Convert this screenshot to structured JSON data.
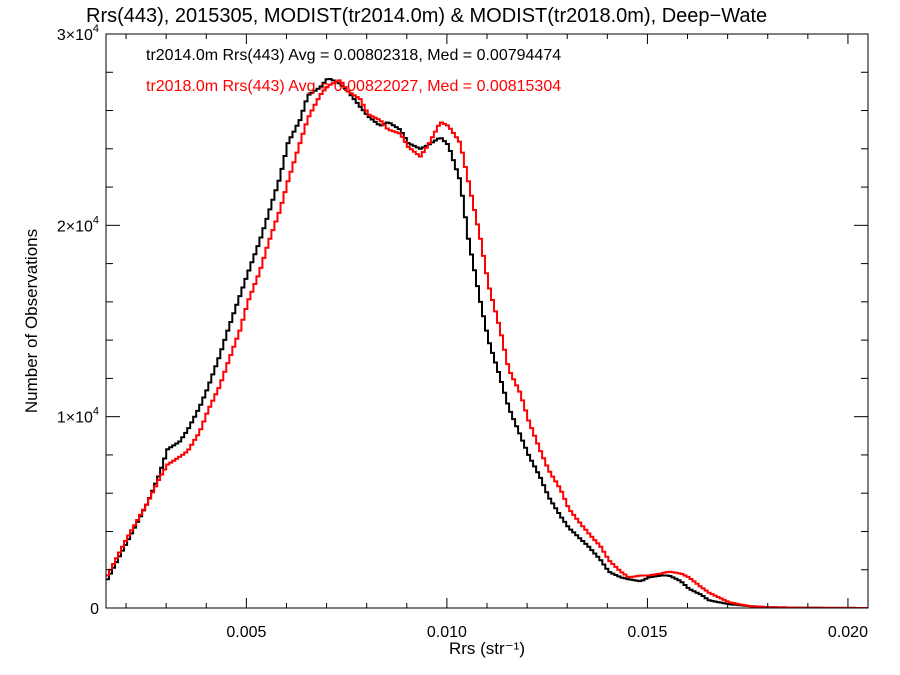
{
  "chart_data": {
    "type": "line",
    "title": "Rrs(443), 2015305, MODIST(tr2014.0m) & MODIST(tr2018.0m), Deep−Wate",
    "xlabel": "Rrs (str⁻¹)",
    "ylabel": "Number of Observations",
    "xlim": [
      0.0015,
      0.0205
    ],
    "ylim": [
      0,
      30000
    ],
    "x_ticks": [
      {
        "value": 0.005,
        "label": "0.005"
      },
      {
        "value": 0.01,
        "label": "0.010"
      },
      {
        "value": 0.015,
        "label": "0.015"
      },
      {
        "value": 0.02,
        "label": "0.020"
      }
    ],
    "y_ticks": [
      {
        "value": 0,
        "base": "0",
        "exp": ""
      },
      {
        "value": 10000,
        "base": "1×10",
        "exp": "4"
      },
      {
        "value": 20000,
        "base": "2×10",
        "exp": "4"
      },
      {
        "value": 30000,
        "base": "3×10",
        "exp": "4"
      }
    ],
    "legend_placement": "top-left",
    "series": [
      {
        "name": "tr2014.0m",
        "color": "#000000",
        "annotation": "tr2014.0m Rrs(443) Avg = 0.00802318, Med = 0.00794474",
        "x": [
          0.0015,
          0.002,
          0.0025,
          0.0028,
          0.003,
          0.0033,
          0.0035,
          0.0038,
          0.004,
          0.0043,
          0.0045,
          0.0048,
          0.005,
          0.0053,
          0.0055,
          0.0058,
          0.006,
          0.0063,
          0.0065,
          0.0068,
          0.007,
          0.0073,
          0.0075,
          0.0078,
          0.008,
          0.0083,
          0.0085,
          0.0088,
          0.009,
          0.0093,
          0.0095,
          0.0098,
          0.01,
          0.0103,
          0.0105,
          0.0108,
          0.011,
          0.0113,
          0.0115,
          0.0118,
          0.012,
          0.0123,
          0.0125,
          0.0128,
          0.013,
          0.0133,
          0.0135,
          0.0138,
          0.014,
          0.0143,
          0.0145,
          0.0148,
          0.015,
          0.0153,
          0.0155,
          0.0158,
          0.016,
          0.0163,
          0.0165,
          0.017,
          0.0175,
          0.018,
          0.019,
          0.0205
        ],
        "y": [
          1500,
          3500,
          5500,
          7000,
          8300,
          8700,
          9300,
          10500,
          11500,
          13200,
          14500,
          16300,
          17500,
          19200,
          20500,
          22500,
          24300,
          25500,
          26800,
          27200,
          27700,
          27400,
          27000,
          26200,
          25700,
          25200,
          25400,
          25000,
          24300,
          24000,
          24200,
          24600,
          24200,
          22300,
          19300,
          16000,
          14000,
          12000,
          10500,
          9000,
          8000,
          6800,
          5800,
          4800,
          4200,
          3600,
          3200,
          2500,
          1900,
          1600,
          1500,
          1400,
          1600,
          1700,
          1700,
          1400,
          1000,
          700,
          400,
          200,
          100,
          40,
          10,
          0
        ]
      },
      {
        "name": "tr2018.0m",
        "color": "#ff0000",
        "annotation": "tr2018.0m Rrs(443) Avg = 0.00822027, Med = 0.00815304",
        "x": [
          0.0015,
          0.002,
          0.0025,
          0.0028,
          0.003,
          0.0033,
          0.0035,
          0.0038,
          0.004,
          0.0043,
          0.0045,
          0.0048,
          0.005,
          0.0053,
          0.0055,
          0.0058,
          0.006,
          0.0063,
          0.0065,
          0.0068,
          0.007,
          0.0073,
          0.0075,
          0.0078,
          0.008,
          0.0083,
          0.0085,
          0.0088,
          0.009,
          0.0093,
          0.0095,
          0.0098,
          0.01,
          0.0103,
          0.0105,
          0.0108,
          0.011,
          0.0113,
          0.0115,
          0.0118,
          0.012,
          0.0123,
          0.0125,
          0.0128,
          0.013,
          0.0133,
          0.0135,
          0.0138,
          0.014,
          0.0143,
          0.0145,
          0.0148,
          0.015,
          0.0153,
          0.0155,
          0.0158,
          0.016,
          0.0163,
          0.0165,
          0.017,
          0.0175,
          0.018,
          0.019,
          0.0205
        ],
        "y": [
          1700,
          3700,
          5500,
          6800,
          7500,
          7900,
          8200,
          9200,
          10300,
          11600,
          12800,
          14500,
          16000,
          17600,
          19000,
          20800,
          22300,
          24300,
          25600,
          26800,
          27300,
          27600,
          27000,
          26600,
          25800,
          25500,
          25000,
          24800,
          24100,
          23600,
          24200,
          25400,
          25200,
          24300,
          22300,
          19300,
          16900,
          14500,
          12500,
          11200,
          9800,
          8200,
          7200,
          6200,
          5200,
          4400,
          3900,
          3200,
          2500,
          1900,
          1600,
          1700,
          1700,
          1800,
          1900,
          1800,
          1600,
          1100,
          800,
          300,
          100,
          40,
          10,
          0
        ]
      }
    ]
  }
}
